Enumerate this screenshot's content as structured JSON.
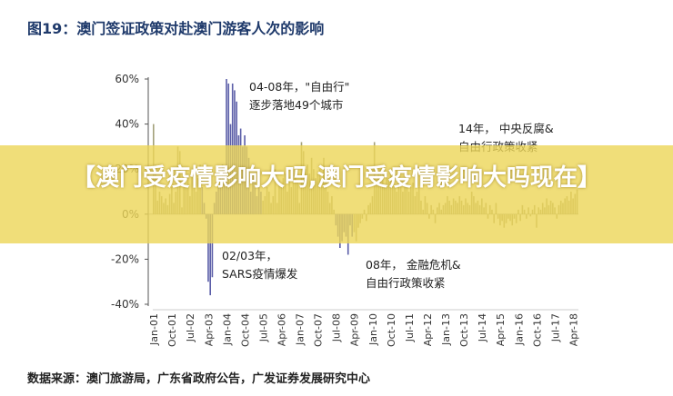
{
  "figure_title": "图19：澳门签证政策对赴澳门游客人次的影响",
  "source_note": "数据来源：澳门旅游局，广东省政府公告，广发证券发展研究中心",
  "banner": {
    "text": "【澳门受疫情影响大吗,澳门受疫情影响大吗现在】"
  },
  "annotations": [
    {
      "id": "a1",
      "lines": [
        "04-08年，\"自由行\"",
        "逐步落地49个城市"
      ]
    },
    {
      "id": "a2",
      "lines": [
        "14年，   中央反腐&",
        "自由行政策收紧"
      ]
    },
    {
      "id": "a3",
      "lines": [
        "02/03年，",
        "SARS疫情爆发"
      ]
    },
    {
      "id": "a4",
      "lines": [
        "08年，   金融危机&",
        "自由行政策收紧"
      ]
    }
  ],
  "chart_data": {
    "type": "bar",
    "title": "图19：澳门签证政策对赴澳门游客人次的影响",
    "xlabel": "",
    "ylabel": "",
    "ylim": [
      -0.4,
      0.6
    ],
    "yticks": [
      "60%",
      "40%",
      "20%",
      "0%",
      "-20%",
      "-40%"
    ],
    "ytick_values": [
      0.6,
      0.4,
      0.2,
      0.0,
      -0.2,
      -0.4
    ],
    "xtick_labels": [
      "Jan-01",
      "Oct-01",
      "Jul-02",
      "Apr-03",
      "Jan-04",
      "Oct-04",
      "Jul-05",
      "Apr-06",
      "Jan-07",
      "Oct-07",
      "Jul-08",
      "Apr-09",
      "Jan-10",
      "Oct-10",
      "Jul-11",
      "Apr-12",
      "Jan-13",
      "Oct-13",
      "Jul-14",
      "Apr-15",
      "Jan-16",
      "Oct-16",
      "Jul-17",
      "Apr-18"
    ],
    "x_start": "Jan-01",
    "x_end": "Jun-18",
    "bar_color_before": "#a3a07a",
    "bar_color_highlight": "#5b5ea8",
    "highlight_periods": [
      [
        "Jan-03",
        "Jun-05"
      ],
      [
        "Jul-08",
        "Mar-09"
      ]
    ],
    "monthly_values_by_year": {
      "2001": [
        0.4,
        0.22,
        0.06,
        0.1,
        0.08,
        0.05,
        0.07,
        0.04,
        0.09,
        0.12,
        0.05,
        0.1
      ],
      "2002": [
        0.3,
        0.28,
        0.03,
        0.15,
        0.12,
        0.18,
        0.08,
        0.2,
        0.14,
        0.1,
        0.16,
        0.22
      ],
      "2003": [
        0.12,
        0.05,
        -0.02,
        -0.3,
        -0.36,
        -0.28,
        0.05,
        0.1,
        0.12,
        0.16,
        0.22,
        0.2
      ],
      "2004": [
        0.6,
        0.58,
        0.4,
        0.58,
        0.55,
        0.5,
        0.35,
        0.38,
        0.3,
        0.35,
        0.3,
        0.25
      ],
      "2005": [
        0.1,
        0.18,
        0.15,
        0.08,
        0.12,
        0.1,
        0.06,
        0.08,
        0.12,
        0.1,
        0.05,
        0.08
      ],
      "2006": [
        0.2,
        0.05,
        0.15,
        0.12,
        0.16,
        0.18,
        0.1,
        0.15,
        0.12,
        0.2,
        0.18,
        0.15
      ],
      "2007": [
        0.05,
        0.32,
        0.28,
        0.2,
        0.22,
        0.18,
        0.25,
        0.2,
        0.16,
        0.18,
        0.2,
        0.12
      ],
      "2008": [
        0.25,
        0.18,
        0.1,
        0.05,
        0.08,
        0.02,
        -0.05,
        -0.1,
        -0.15,
        -0.12,
        -0.08,
        -0.1
      ],
      "2009": [
        -0.18,
        -0.05,
        -0.1,
        -0.08,
        -0.12,
        -0.06,
        -0.04,
        -0.02,
        0.02,
        -0.03,
        0.04,
        0.05
      ],
      "2010": [
        0.08,
        0.32,
        0.15,
        0.18,
        0.2,
        0.22,
        0.12,
        0.18,
        0.16,
        0.2,
        0.14,
        0.12
      ],
      "2011": [
        0.1,
        0.16,
        0.12,
        0.1,
        0.14,
        0.12,
        0.1,
        0.12,
        0.14,
        0.08,
        0.1,
        0.12
      ],
      "2012": [
        0.06,
        0.02,
        0.08,
        0.05,
        -0.02,
        0.04,
        0.02,
        -0.04,
        0.03,
        0.05,
        0.02,
        0.04
      ],
      "2013": [
        0.05,
        0.08,
        0.06,
        0.04,
        0.07,
        0.06,
        0.05,
        0.08,
        0.06,
        0.04,
        0.07,
        0.05
      ],
      "2014": [
        0.04,
        0.1,
        0.08,
        0.05,
        0.06,
        0.04,
        0.07,
        0.03,
        0.05,
        -0.02,
        0.04,
        0.02
      ],
      "2015": [
        -0.04,
        0.05,
        -0.02,
        -0.05,
        -0.03,
        -0.06,
        -0.04,
        -0.02,
        -0.03,
        -0.05,
        -0.02,
        -0.04
      ],
      "2016": [
        0.02,
        -0.03,
        0.04,
        0.02,
        -0.02,
        0.03,
        -0.01,
        0.02,
        0.04,
        -0.06,
        0.03,
        0.02
      ],
      "2017": [
        0.05,
        0.03,
        0.07,
        0.04,
        0.06,
        0.05,
        0.03,
        -0.02,
        0.04,
        0.06,
        0.05,
        0.07
      ],
      "2018": [
        0.08,
        0.06,
        0.1,
        0.07,
        0.09,
        0.11
      ]
    }
  }
}
